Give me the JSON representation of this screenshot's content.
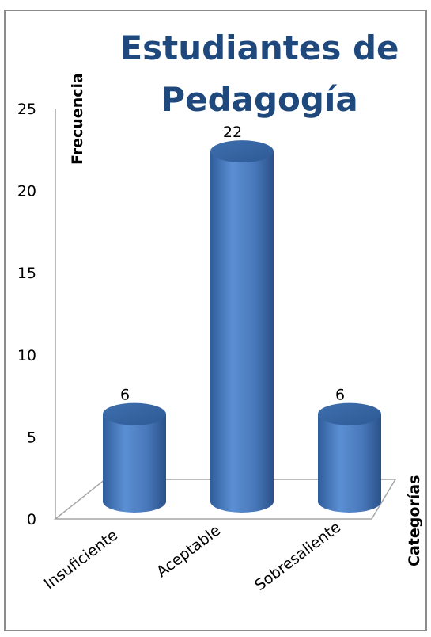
{
  "chart_data": {
    "type": "bar",
    "title_lines": [
      "Estudiantes de",
      "Pedagogía"
    ],
    "ylabel": "Frecuencia",
    "xlabel": "Categorías",
    "categories": [
      "Insuficiente",
      "Aceptable",
      "Sobresaliente"
    ],
    "values": [
      6,
      22,
      6
    ],
    "data_labels": [
      "6",
      "22",
      "6"
    ],
    "ylim": [
      0,
      25
    ],
    "yticks": [
      "0",
      "5",
      "10",
      "15",
      "20",
      "25"
    ],
    "bar_shape": "cylinder",
    "bar_color": "#4a7ec0",
    "grid": false
  }
}
